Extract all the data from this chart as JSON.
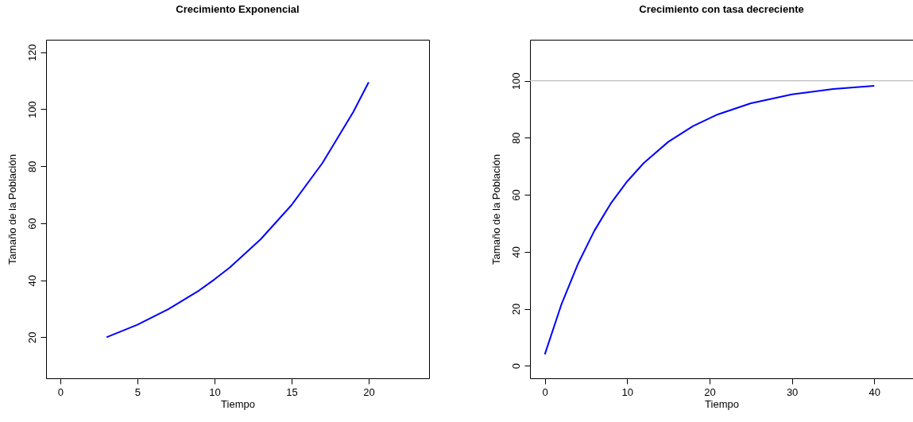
{
  "chart_data": [
    {
      "type": "line",
      "title": "Crecimiento Exponencial",
      "xlabel": "Tiempo",
      "ylabel": "Tamaño de la Población",
      "x": [
        3,
        5,
        7,
        9,
        10,
        11,
        13,
        15,
        17,
        19,
        20
      ],
      "series": [
        {
          "color": "#0000ff",
          "values": [
            20,
            24.4,
            29.8,
            36.4,
            40.3,
            44.5,
            54.4,
            66.4,
            81.1,
            99.0,
            109.5
          ]
        }
      ],
      "xlim": [
        -0.92,
        23.92
      ],
      "ylim": [
        5.6,
        124.4
      ],
      "xticks": [
        0,
        5,
        10,
        15,
        20
      ],
      "yticks": [
        20,
        40,
        60,
        80,
        100,
        120
      ]
    },
    {
      "type": "line",
      "title": "Crecimiento con tasa decreciente",
      "xlabel": "Tiempo",
      "ylabel": "Tamaño de la Población",
      "x": [
        0,
        2,
        4,
        6,
        8,
        10,
        12,
        15,
        18,
        21,
        25,
        30,
        35,
        40
      ],
      "series": [
        {
          "color": "#0000ff",
          "values": [
            4,
            21.4,
            35.6,
            47.3,
            56.9,
            64.7,
            71.1,
            78.6,
            84.1,
            88.2,
            92.1,
            95.2,
            97.1,
            98.2
          ]
        }
      ],
      "xlim": [
        -1.8,
        44.7
      ],
      "ylim": [
        -4.4,
        114.4
      ],
      "xticks": [
        0,
        10,
        20,
        30,
        40
      ],
      "yticks": [
        0,
        20,
        40,
        60,
        80,
        100
      ],
      "ref_lines": [
        {
          "axis": "y",
          "value": 100,
          "color": "#bebebe"
        }
      ]
    }
  ]
}
